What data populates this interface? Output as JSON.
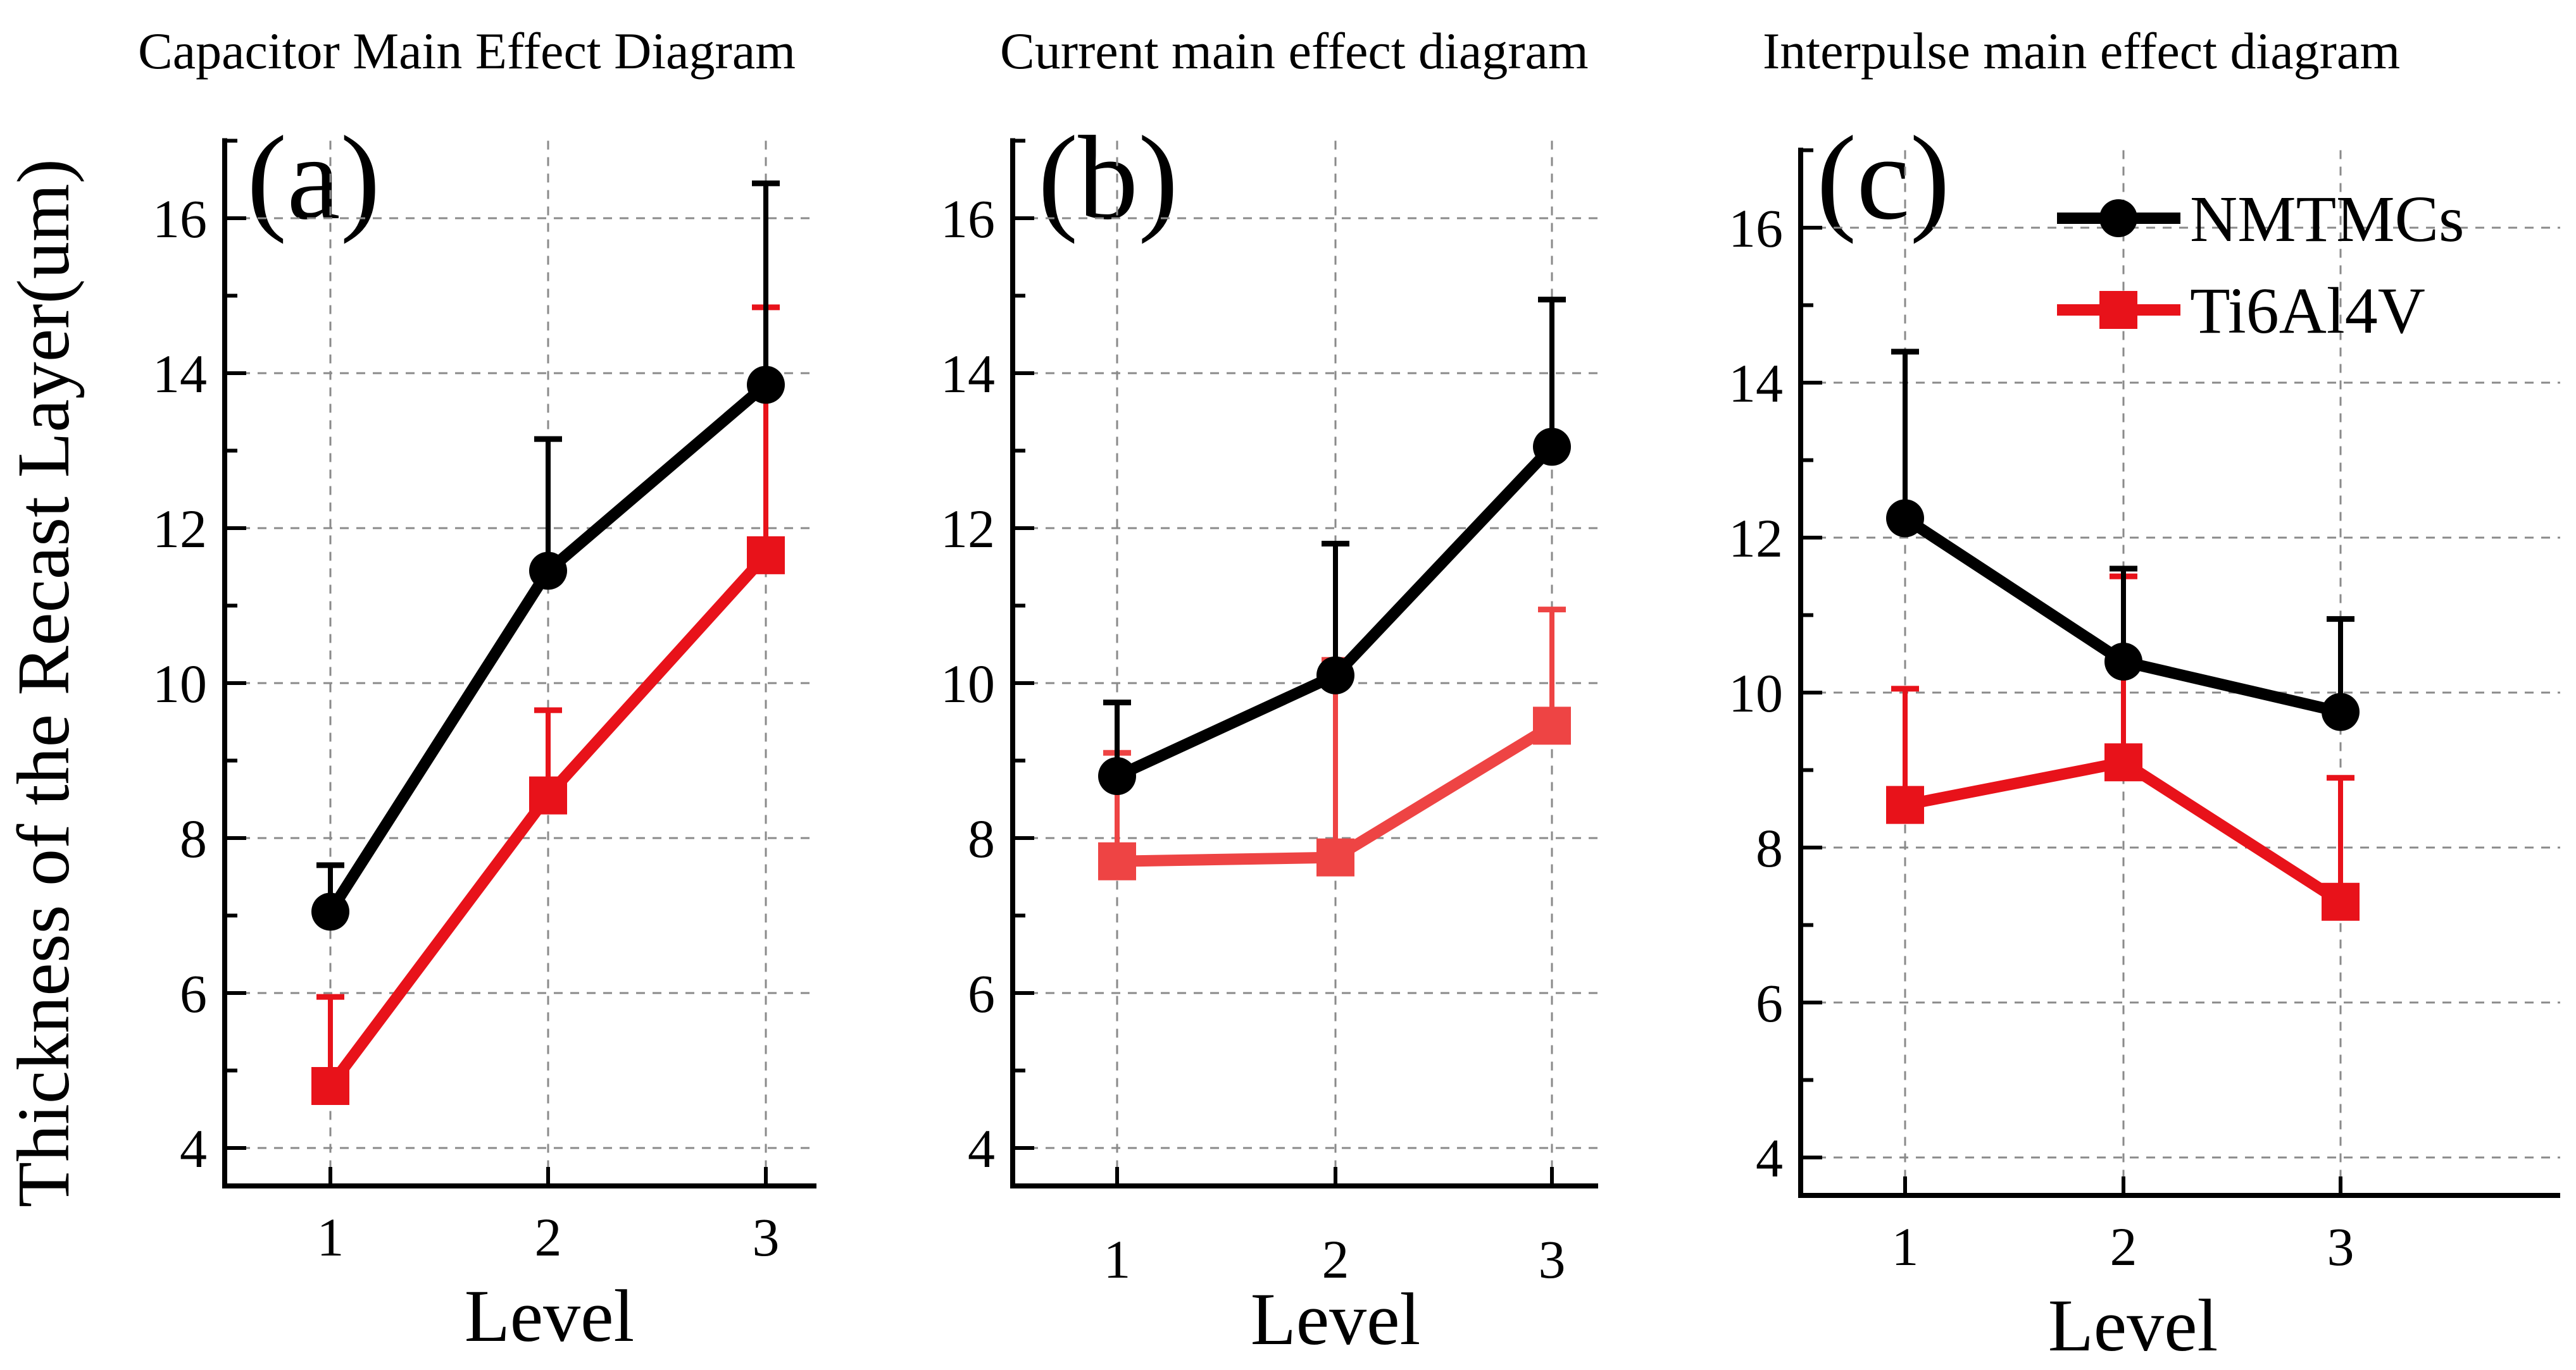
{
  "figure": {
    "ylabel": "Thickness of the Recast Layer(um)"
  },
  "colors": {
    "nmtmc": "#000000",
    "ti": "#e8121a",
    "ti_light": "#ee4444",
    "grid": "#8a8a8a"
  },
  "legend": {
    "items": [
      {
        "name": "NMTMCs",
        "color": "#000000",
        "marker": "circle"
      },
      {
        "name": "Ti6Al4V",
        "color": "#e8121a",
        "marker": "square"
      }
    ]
  },
  "chart_data": [
    {
      "type": "line",
      "panel": "(a)",
      "title": "Capacitor Main Effect Diagram",
      "xlabel": "Level",
      "ylabel": "Thickness of the Recast Layer(um)",
      "categories": [
        "1",
        "2",
        "3"
      ],
      "ylim": [
        3.5,
        17.0
      ],
      "yticks": [
        4,
        6,
        8,
        10,
        12,
        14,
        16
      ],
      "grid": true,
      "series": [
        {
          "name": "NMTMCs",
          "values": [
            7.05,
            11.45,
            13.85
          ],
          "errors": [
            0.6,
            1.7,
            2.6
          ]
        },
        {
          "name": "Ti6Al4V",
          "values": [
            4.8,
            8.55,
            11.65
          ],
          "errors": [
            1.15,
            1.1,
            3.2
          ]
        }
      ]
    },
    {
      "type": "line",
      "panel": "(b)",
      "title": "Current main effect diagram",
      "xlabel": "Level",
      "ylabel": "",
      "categories": [
        "1",
        "2",
        "3"
      ],
      "ylim": [
        3.5,
        17.0
      ],
      "yticks": [
        4,
        6,
        8,
        10,
        12,
        14,
        16
      ],
      "grid": true,
      "series": [
        {
          "name": "NMTMCs",
          "values": [
            8.8,
            10.1,
            13.05
          ],
          "errors": [
            0.95,
            1.7,
            1.9
          ]
        },
        {
          "name": "Ti6Al4V",
          "values": [
            7.7,
            7.75,
            9.45
          ],
          "errors": [
            1.4,
            2.55,
            1.5
          ]
        }
      ]
    },
    {
      "type": "line",
      "panel": "(c)",
      "title": "Interpulse main effect diagram",
      "xlabel": "Level",
      "ylabel": "",
      "categories": [
        "1",
        "2",
        "3"
      ],
      "ylim": [
        3.5,
        17.0
      ],
      "yticks": [
        4,
        6,
        8,
        10,
        12,
        14,
        16
      ],
      "grid": true,
      "legend": "top-right",
      "series": [
        {
          "name": "NMTMCs",
          "values": [
            12.25,
            10.4,
            9.75
          ],
          "errors": [
            2.15,
            1.2,
            1.2
          ]
        },
        {
          "name": "Ti6Al4V",
          "values": [
            8.55,
            9.1,
            7.3
          ],
          "errors": [
            1.5,
            2.4,
            1.6
          ]
        }
      ]
    }
  ]
}
